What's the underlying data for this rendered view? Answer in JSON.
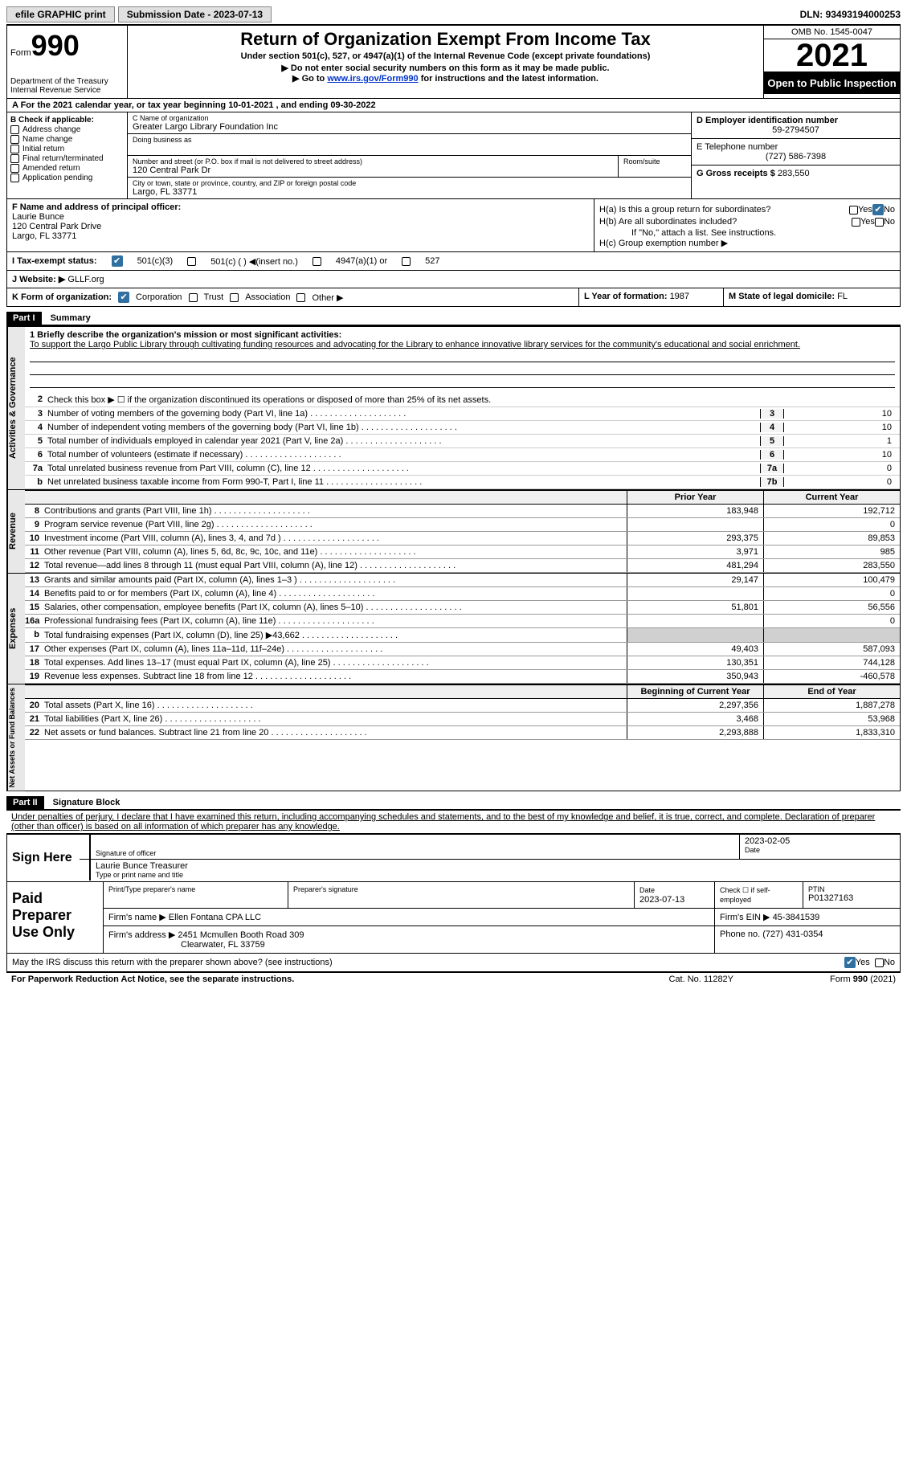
{
  "topbar": {
    "efile": "efile GRAPHIC print",
    "subdate_label": "Submission Date - ",
    "subdate": "2023-07-13",
    "dln_label": "DLN: ",
    "dln": "93493194000253"
  },
  "header": {
    "form_word": "Form",
    "form_no": "990",
    "dept": "Department of the Treasury\nInternal Revenue Service",
    "title": "Return of Organization Exempt From Income Tax",
    "sub1": "Under section 501(c), 527, or 4947(a)(1) of the Internal Revenue Code (except private foundations)",
    "sub2": "Do not enter social security numbers on this form as it may be made public.",
    "sub3_pre": "Go to ",
    "sub3_link": "www.irs.gov/Form990",
    "sub3_post": " for instructions and the latest information.",
    "omb": "OMB No. 1545-0047",
    "year": "2021",
    "open": "Open to Public Inspection"
  },
  "row_a": {
    "text": "A For the 2021 calendar year, or tax year beginning 10-01-2021     , and ending 09-30-2022"
  },
  "col_b": {
    "header": "B Check if applicable:",
    "items": [
      "Address change",
      "Name change",
      "Initial return",
      "Final return/terminated",
      "Amended return",
      "Application pending"
    ]
  },
  "col_c": {
    "name_label": "C Name of organization",
    "name": "Greater Largo Library Foundation Inc",
    "dba_label": "Doing business as",
    "addr_label": "Number and street (or P.O. box if mail is not delivered to street address)",
    "addr": "120 Central Park Dr",
    "room_label": "Room/suite",
    "city_label": "City or town, state or province, country, and ZIP or foreign postal code",
    "city": "Largo, FL  33771"
  },
  "col_d": {
    "ein_label": "D Employer identification number",
    "ein": "59-2794507",
    "phone_label": "E Telephone number",
    "phone": "(727) 586-7398",
    "gross_label": "G Gross receipts $ ",
    "gross": "283,550"
  },
  "row_f": {
    "label": "F  Name and address of principal officer:",
    "name": "Laurie Bunce",
    "addr1": "120 Central Park Drive",
    "addr2": "Largo, FL  33771"
  },
  "row_h": {
    "ha": "H(a)  Is this a group return for subordinates?",
    "hb": "H(b)  Are all subordinates included?",
    "hb_note": "If \"No,\" attach a list. See instructions.",
    "hc": "H(c)  Group exemption number ▶",
    "yes": "Yes",
    "no": "No"
  },
  "row_i": {
    "label": "I    Tax-exempt status:",
    "opt1": "501(c)(3)",
    "opt2": "501(c) (   ) ◀(insert no.)",
    "opt3": "4947(a)(1) or",
    "opt4": "527"
  },
  "row_j": {
    "label": "J   Website: ▶",
    "val": "GLLF.org"
  },
  "row_k": {
    "label": "K Form of organization:",
    "corp": "Corporation",
    "trust": "Trust",
    "assoc": "Association",
    "other": "Other ▶",
    "l_label": "L Year of formation: ",
    "l_val": "1987",
    "m_label": "M State of legal domicile: ",
    "m_val": "FL"
  },
  "part1": {
    "hdr": "Part I",
    "title": "Summary"
  },
  "mission": {
    "line1": "1   Briefly describe the organization's mission or most significant activities:",
    "text": "To support the Largo Public Library through cultivating funding resources and advocating for the Library to enhance innovative library services for the community's educational and social enrichment."
  },
  "sum1": {
    "l2": "Check this box ▶ ☐  if the organization discontinued its operations or disposed of more than 25% of its net assets.",
    "rows": [
      {
        "n": "3",
        "t": "Number of voting members of the governing body (Part VI, line 1a)",
        "v": "10"
      },
      {
        "n": "4",
        "t": "Number of independent voting members of the governing body (Part VI, line 1b)",
        "v": "10"
      },
      {
        "n": "5",
        "t": "Total number of individuals employed in calendar year 2021 (Part V, line 2a)",
        "v": "1"
      },
      {
        "n": "6",
        "t": "Total number of volunteers (estimate if necessary)",
        "v": "10"
      },
      {
        "n": "7a",
        "t": "Total unrelated business revenue from Part VIII, column (C), line 12",
        "v": "0"
      },
      {
        "n": "7b",
        "t": "Net unrelated business taxable income from Form 990-T, Part I, line 11",
        "b": "b",
        "v": "0"
      }
    ]
  },
  "cols": {
    "prior": "Prior Year",
    "current": "Current Year",
    "begin": "Beginning of Current Year",
    "end": "End of Year"
  },
  "revenue": [
    {
      "n": "8",
      "t": "Contributions and grants (Part VIII, line 1h)",
      "p": "183,948",
      "c": "192,712"
    },
    {
      "n": "9",
      "t": "Program service revenue (Part VIII, line 2g)",
      "p": "",
      "c": "0"
    },
    {
      "n": "10",
      "t": "Investment income (Part VIII, column (A), lines 3, 4, and 7d )",
      "p": "293,375",
      "c": "89,853"
    },
    {
      "n": "11",
      "t": "Other revenue (Part VIII, column (A), lines 5, 6d, 8c, 9c, 10c, and 11e)",
      "p": "3,971",
      "c": "985"
    },
    {
      "n": "12",
      "t": "Total revenue—add lines 8 through 11 (must equal Part VIII, column (A), line 12)",
      "p": "481,294",
      "c": "283,550"
    }
  ],
  "expenses": [
    {
      "n": "13",
      "t": "Grants and similar amounts paid (Part IX, column (A), lines 1–3 )",
      "p": "29,147",
      "c": "100,479"
    },
    {
      "n": "14",
      "t": "Benefits paid to or for members (Part IX, column (A), line 4)",
      "p": "",
      "c": "0"
    },
    {
      "n": "15",
      "t": "Salaries, other compensation, employee benefits (Part IX, column (A), lines 5–10)",
      "p": "51,801",
      "c": "56,556"
    },
    {
      "n": "16a",
      "t": "Professional fundraising fees (Part IX, column (A), line 11e)",
      "p": "",
      "c": "0"
    },
    {
      "n": "b",
      "t": "Total fundraising expenses (Part IX, column (D), line 25) ▶43,662",
      "p": "shaded",
      "c": "shaded"
    },
    {
      "n": "17",
      "t": "Other expenses (Part IX, column (A), lines 11a–11d, 11f–24e)",
      "p": "49,403",
      "c": "587,093"
    },
    {
      "n": "18",
      "t": "Total expenses. Add lines 13–17 (must equal Part IX, column (A), line 25)",
      "p": "130,351",
      "c": "744,128"
    },
    {
      "n": "19",
      "t": "Revenue less expenses. Subtract line 18 from line 12",
      "p": "350,943",
      "c": "-460,578"
    }
  ],
  "netassets": [
    {
      "n": "20",
      "t": "Total assets (Part X, line 16)",
      "p": "2,297,356",
      "c": "1,887,278"
    },
    {
      "n": "21",
      "t": "Total liabilities (Part X, line 26)",
      "p": "3,468",
      "c": "53,968"
    },
    {
      "n": "22",
      "t": "Net assets or fund balances. Subtract line 21 from line 20",
      "p": "2,293,888",
      "c": "1,833,310"
    }
  ],
  "vtabs": {
    "gov": "Activities & Governance",
    "rev": "Revenue",
    "exp": "Expenses",
    "net": "Net Assets or Fund Balances"
  },
  "part2": {
    "hdr": "Part II",
    "title": "Signature Block"
  },
  "sig": {
    "decl": "Under penalties of perjury, I declare that I have examined this return, including accompanying schedules and statements, and to the best of my knowledge and belief, it is true, correct, and complete. Declaration of preparer (other than officer) is based on all information of which preparer has any knowledge.",
    "sign_here": "Sign Here",
    "sig_officer": "Signature of officer",
    "date_val": "2023-02-05",
    "date_lbl": "Date",
    "name_title": "Laurie Bunce  Treasurer",
    "type_name": "Type or print name and title"
  },
  "paid": {
    "label": "Paid Preparer Use Only",
    "prep_name_lbl": "Print/Type preparer's name",
    "prep_sig_lbl": "Preparer's signature",
    "date_lbl": "Date",
    "date_val": "2023-07-13",
    "check_lbl": "Check ☐ if self-employed",
    "ptin_lbl": "PTIN",
    "ptin": "P01327163",
    "firm_name_lbl": "Firm's name     ▶",
    "firm_name": "Ellen Fontana CPA LLC",
    "firm_ein_lbl": "Firm's EIN ▶",
    "firm_ein": "45-3841539",
    "firm_addr_lbl": "Firm's address ▶",
    "firm_addr1": "2451 Mcmullen Booth Road 309",
    "firm_addr2": "Clearwater, FL  33759",
    "phone_lbl": "Phone no. ",
    "phone": "(727) 431-0354"
  },
  "may_irs": {
    "text": "May the IRS discuss this return with the preparer shown above? (see instructions)",
    "yes": "Yes",
    "no": "No"
  },
  "footer": {
    "left": "For Paperwork Reduction Act Notice, see the separate instructions.",
    "mid": "Cat. No. 11282Y",
    "right": "Form 990 (2021)"
  }
}
